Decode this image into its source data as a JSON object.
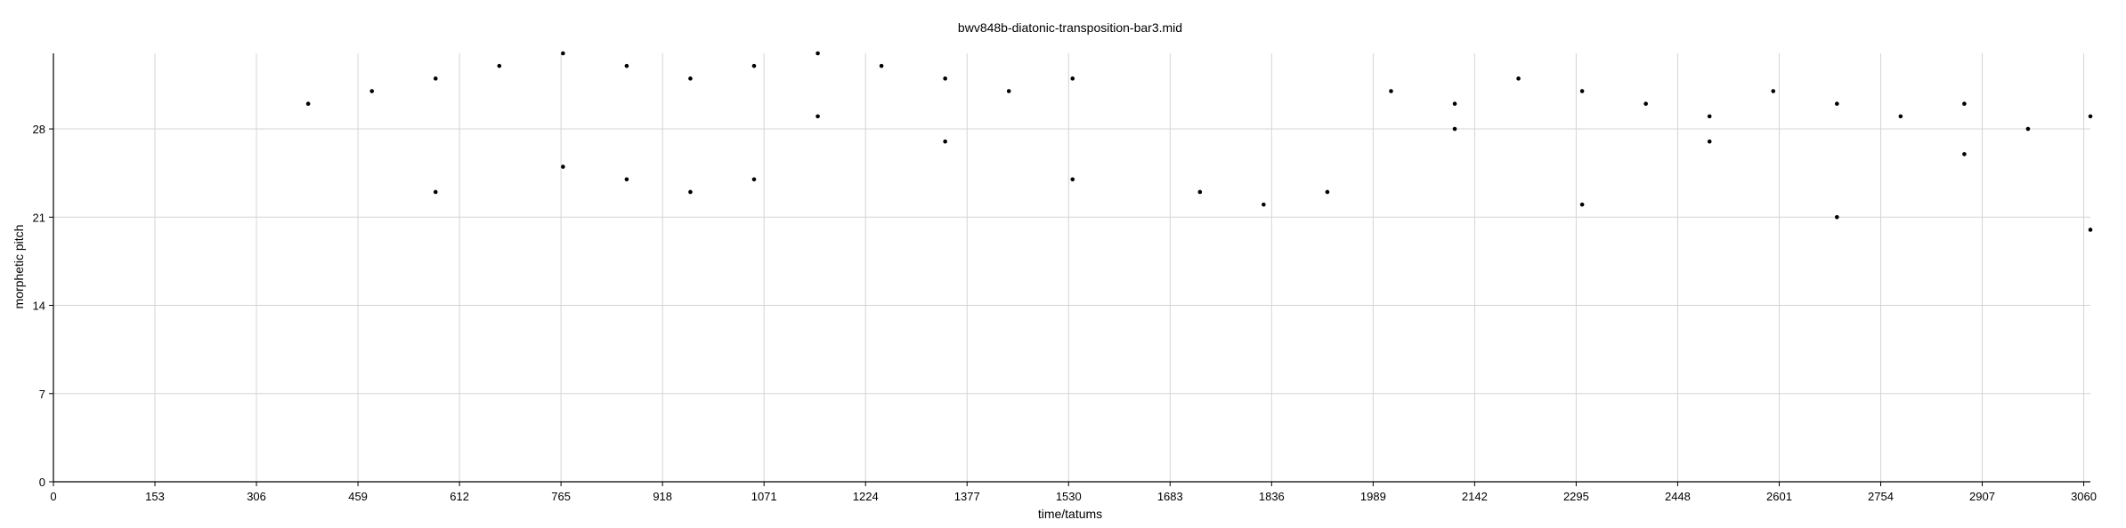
{
  "chart_data": {
    "type": "scatter",
    "title": "bwv848b-diatonic-transposition-bar3.mid",
    "xlabel": "time/tatums",
    "ylabel": "morphetic pitch",
    "xlim": [
      0,
      3070
    ],
    "ylim": [
      0,
      34
    ],
    "xticks": [
      0,
      153,
      306,
      459,
      612,
      765,
      918,
      1071,
      1224,
      1377,
      1530,
      1683,
      1836,
      1989,
      2142,
      2295,
      2448,
      2601,
      2754,
      2907,
      3060
    ],
    "yticks": [
      0,
      7,
      14,
      21,
      28
    ],
    "grid": true,
    "legend": "none",
    "colors": {
      "grid": "#d4d4d4",
      "axis": "#000000",
      "point": "#000000"
    },
    "series": [
      {
        "name": "notes",
        "points": [
          [
            384,
            30
          ],
          [
            480,
            31
          ],
          [
            576,
            32
          ],
          [
            576,
            23
          ],
          [
            672,
            33
          ],
          [
            768,
            34
          ],
          [
            768,
            25
          ],
          [
            864,
            33
          ],
          [
            864,
            24
          ],
          [
            960,
            32
          ],
          [
            960,
            23
          ],
          [
            1056,
            33
          ],
          [
            1056,
            24
          ],
          [
            1152,
            34
          ],
          [
            1152,
            29
          ],
          [
            1248,
            33
          ],
          [
            1344,
            32
          ],
          [
            1344,
            27
          ],
          [
            1440,
            31
          ],
          [
            1536,
            32
          ],
          [
            1536,
            24
          ],
          [
            1728,
            23
          ],
          [
            1824,
            22
          ],
          [
            1920,
            23
          ],
          [
            2016,
            31
          ],
          [
            2112,
            30
          ],
          [
            2112,
            28
          ],
          [
            2208,
            32
          ],
          [
            2304,
            31
          ],
          [
            2304,
            22
          ],
          [
            2400,
            30
          ],
          [
            2496,
            29
          ],
          [
            2496,
            27
          ],
          [
            2592,
            31
          ],
          [
            2688,
            30
          ],
          [
            2688,
            21
          ],
          [
            2784,
            29
          ],
          [
            2880,
            30
          ],
          [
            2880,
            26
          ],
          [
            2976,
            28
          ],
          [
            3070,
            29
          ],
          [
            3070,
            20
          ]
        ]
      }
    ]
  }
}
